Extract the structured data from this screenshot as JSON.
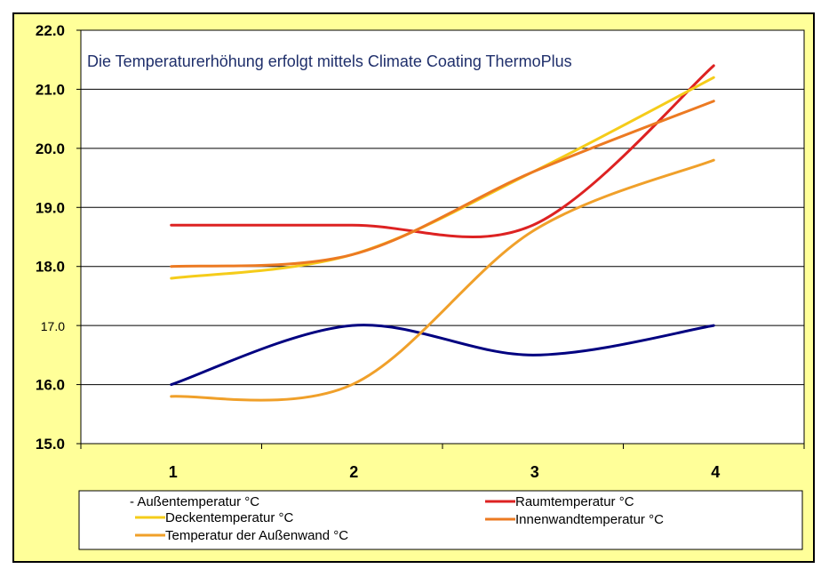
{
  "chart_data": {
    "type": "line",
    "title": "",
    "annotation": "Die Temperaturerhöhung erfolgt mittels Climate Coating ThermoPlus",
    "xlabel": "",
    "ylabel": "",
    "categories": [
      "1",
      "2",
      "3",
      "4"
    ],
    "ylim": [
      15.0,
      22.0
    ],
    "yticks": [
      "15.0",
      "16.0",
      "17.0",
      "18.0",
      "19.0",
      "20.0",
      "21.0",
      "22.0"
    ],
    "grid": "horizontal",
    "background_color": "#ffff99",
    "plot_background_color": "#ffffff",
    "legend_position": "bottom",
    "series": [
      {
        "name": "- Außentemperatur °C",
        "color": "#000080",
        "values": [
          16.0,
          17.0,
          16.5,
          17.0
        ]
      },
      {
        "name": "Raumtemperatur °C",
        "color": "#dd2222",
        "values": [
          18.7,
          18.7,
          18.7,
          21.4
        ]
      },
      {
        "name": "Deckentemperatur °C",
        "color": "#f5cc1a",
        "values": [
          17.8,
          18.2,
          19.6,
          21.2
        ]
      },
      {
        "name": "Innenwandtemperatur °C",
        "color": "#ec7a22",
        "values": [
          18.0,
          18.2,
          19.6,
          20.8
        ]
      },
      {
        "name": "Temperatur der Außenwand °C",
        "color": "#f0a02a",
        "values": [
          15.8,
          16.0,
          18.6,
          19.8
        ]
      }
    ]
  }
}
